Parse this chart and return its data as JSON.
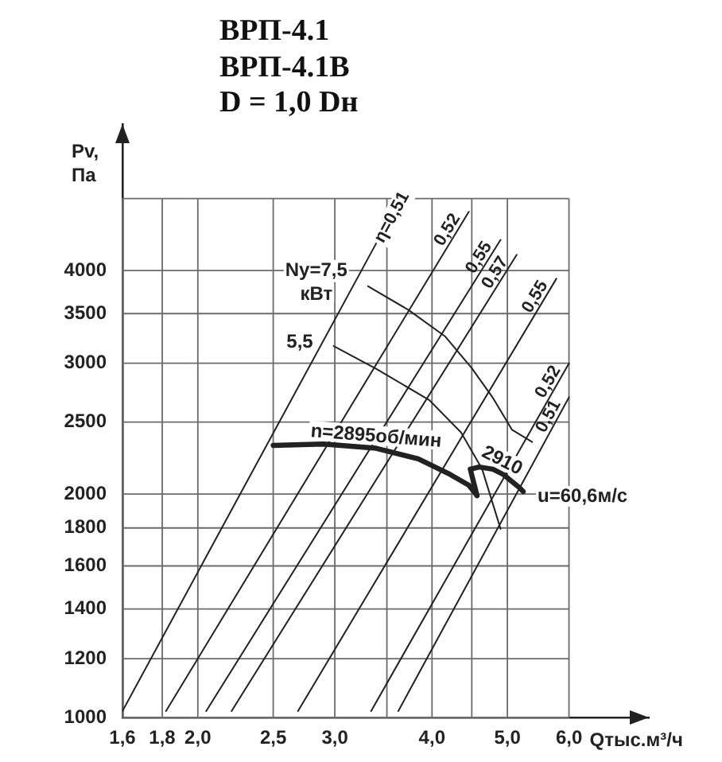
{
  "chart_data": {
    "type": "line",
    "title": "ВРП-4.1\nВРП-4.1В\nD = 1,0 Dн",
    "xlabel": "Qтыс.м³/ч",
    "ylabel": "Pv,\nПа",
    "log": "xy",
    "xlim": [
      1.6,
      7.6
    ],
    "ylim": [
      1000,
      6300
    ],
    "xticks": [
      {
        "value": 1.6,
        "label": "1,6"
      },
      {
        "value": 1.8,
        "label": "1,8"
      },
      {
        "value": 2.0,
        "label": "2,0"
      },
      {
        "value": 2.5,
        "label": "2,5"
      },
      {
        "value": 3.0,
        "label": "3,0"
      },
      {
        "value": 3.5,
        "label": null
      },
      {
        "value": 4.0,
        "label": "4,0"
      },
      {
        "value": 4.5,
        "label": null
      },
      {
        "value": 5.0,
        "label": "5,0"
      },
      {
        "value": 6.0,
        "label": "6,0"
      }
    ],
    "yticks": [
      1000,
      1200,
      1400,
      1600,
      1800,
      2000,
      2500,
      3000,
      3500,
      4000,
      {
        "value": 5000,
        "label": null
      }
    ],
    "grid": true,
    "legend": false,
    "marker": "none",
    "series": [
      {
        "name": "n=2895об/мин",
        "color": "#222222",
        "x": [
          2.5,
          2.9,
          3.39,
          3.84,
          4.22,
          4.46,
          4.57
        ],
        "values": [
          2325,
          2335,
          2305,
          2230,
          2125,
          2055,
          1990
        ]
      },
      {
        "name": "2910",
        "color": "#222222",
        "x": [
          4.57,
          4.48,
          4.6,
          4.79,
          4.94,
          5.18,
          5.24
        ],
        "values": [
          1990,
          2160,
          2175,
          2160,
          2125,
          2040,
          2015
        ]
      },
      {
        "name": "Ny=7,5 кВт",
        "color": "#222222",
        "x": [
          3.31,
          3.73,
          4.16,
          4.5,
          4.79,
          5.07,
          5.38
        ],
        "values": [
          3810,
          3540,
          3260,
          2955,
          2695,
          2440,
          2350
        ]
      },
      {
        "name": "5,5",
        "color": "#222222",
        "x": [
          2.99,
          3.39,
          3.97,
          4.36,
          4.64,
          4.9
        ],
        "values": [
          3165,
          2950,
          2675,
          2420,
          2160,
          1795
        ]
      },
      {
        "name": "η=0,51",
        "color": "#222222",
        "x": [
          1.6,
          3.39
        ],
        "values": [
          1020,
          4350
        ]
      },
      {
        "name": "0,52",
        "color": "#222222",
        "x": [
          1.82,
          4.46
        ],
        "values": [
          1020,
          4800
        ]
      },
      {
        "name": "0,55",
        "color": "#222222",
        "x": [
          2.05,
          4.9
        ],
        "values": [
          1020,
          4400
        ]
      },
      {
        "name": "0,57",
        "color": "#222222",
        "x": [
          2.21,
          5.14
        ],
        "values": [
          1020,
          4200
        ]
      },
      {
        "name": "0,55",
        "color": "#222222",
        "x": [
          2.69,
          5.78
        ],
        "values": [
          1020,
          3900
        ]
      },
      {
        "name": "0,52",
        "color": "#222222",
        "x": [
          3.34,
          6.0
        ],
        "values": [
          1020,
          3000
        ]
      },
      {
        "name": "0,51",
        "color": "#222222",
        "x": [
          3.62,
          6.0
        ],
        "values": [
          1020,
          2700
        ]
      }
    ],
    "annotations": [
      {
        "text": "u=60,6м/с",
        "x": 5.24,
        "y": 2015
      }
    ]
  }
}
